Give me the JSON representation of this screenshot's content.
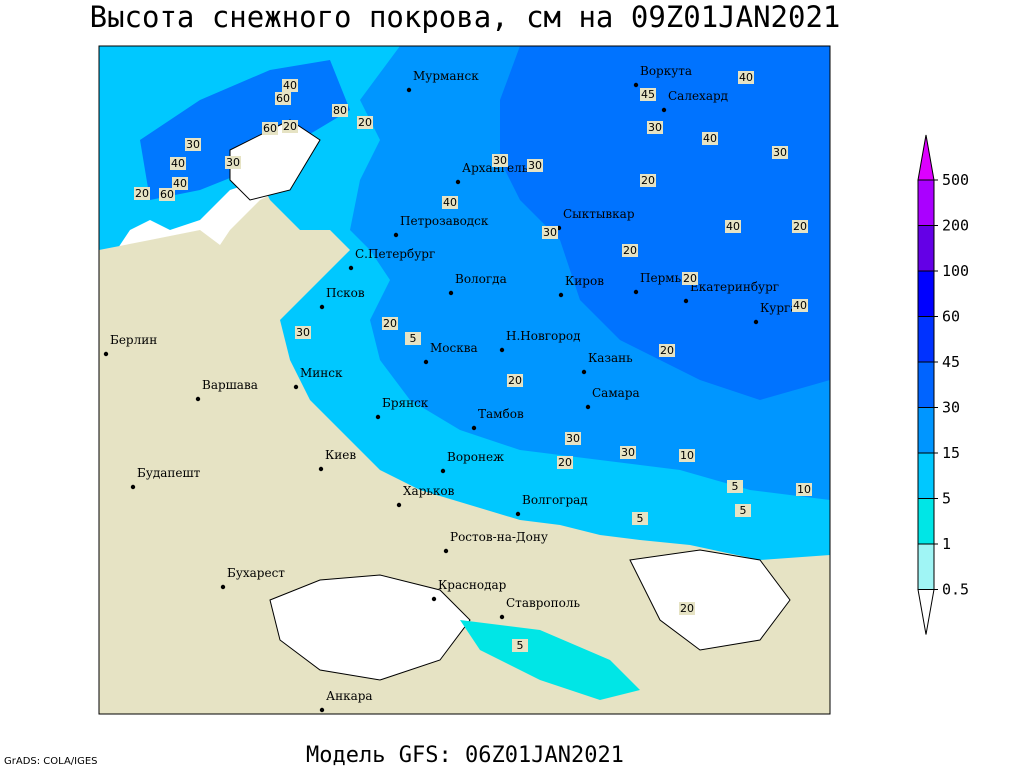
{
  "header": {
    "title": "Высота снежного покрова, см на 09Z01JAN2021"
  },
  "cities": [
    "Мурманск",
    "Воркута",
    "Салехард",
    "Архангельск",
    "Петрозаводск",
    "Сыктывкар",
    "С.Петербург",
    "Вологда",
    "Киров",
    "Пермь",
    "Екатеринбург",
    "Псков",
    "Курган",
    "Берлин",
    "Н.Новгород",
    "Москва",
    "Казань",
    "Минск",
    "Варшава",
    "Самара",
    "Брянск",
    "Тамбов",
    "Воронеж",
    "Киев",
    "Будапешт",
    "Харьков",
    "Волгоград",
    "Ростов-на-Дону",
    "Бухарест",
    "Краснодар",
    "Ставрополь",
    "Анкара"
  ],
  "contour_labels": [
    40,
    60,
    80,
    60,
    20,
    20,
    30,
    40,
    30,
    40,
    20,
    60,
    40,
    45,
    30,
    40,
    30,
    30,
    30,
    20,
    40,
    30,
    40,
    20,
    20,
    20,
    40,
    20,
    5,
    30,
    20,
    20,
    30,
    30,
    10,
    20,
    5,
    10,
    5,
    5,
    20,
    5
  ],
  "legend": {
    "levels": [
      0.5,
      1,
      5,
      15,
      30,
      45,
      60,
      100,
      200,
      500
    ],
    "colors": [
      "#ffffff",
      "#a0f5f5",
      "#00e6e6",
      "#00c8ff",
      "#0096ff",
      "#0064ff",
      "#0032ff",
      "#0000ff",
      "#6400e6",
      "#aa00ff",
      "#dd00ff"
    ]
  },
  "footer": {
    "model": "Модель GFS: 06Z01JAN2021",
    "credit": "GrADS: COLA/IGES"
  }
}
